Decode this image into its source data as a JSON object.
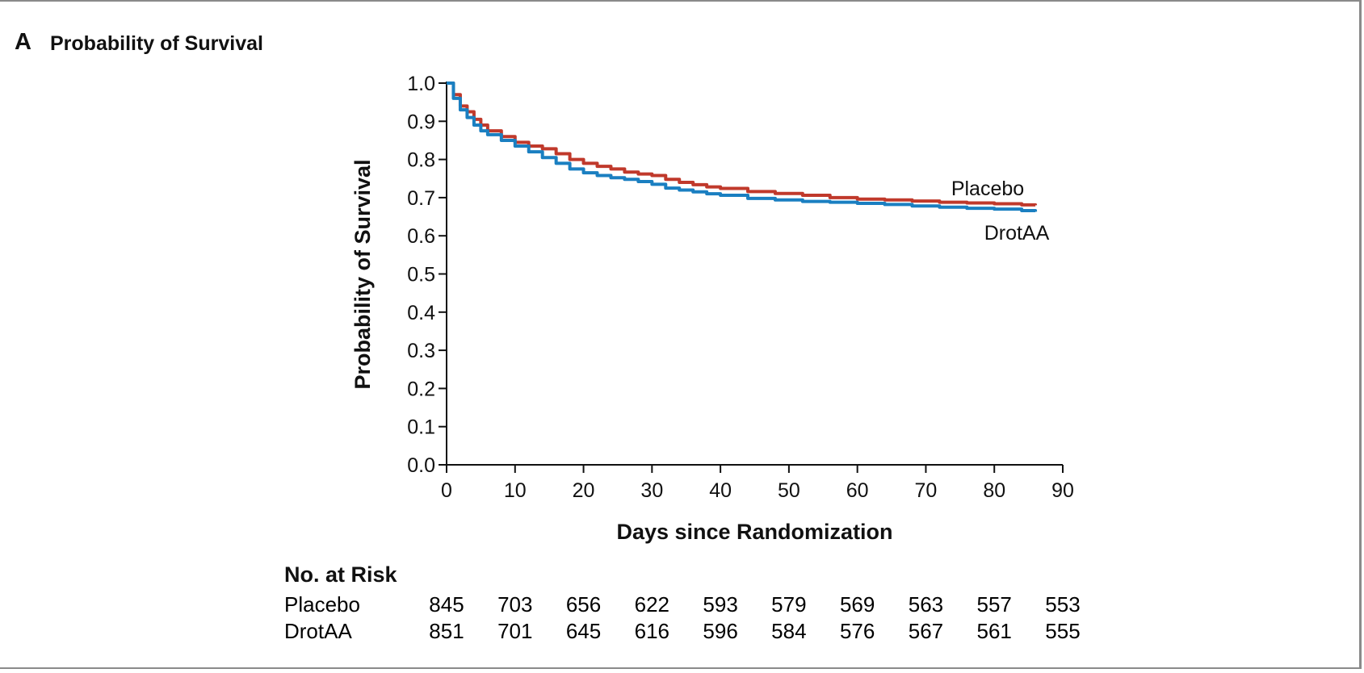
{
  "figure": {
    "panel_letter": "A",
    "panel_title": "Probability of Survival"
  },
  "chart_data": {
    "type": "line",
    "title": "Probability of Survival",
    "xlabel": "Days since Randomization",
    "ylabel": "Probability of Survival",
    "xlim": [
      0,
      90
    ],
    "ylim": [
      0.0,
      1.0
    ],
    "xticks": [
      0,
      10,
      20,
      30,
      40,
      50,
      60,
      70,
      80,
      90
    ],
    "yticks": [
      "0.0",
      "0.1",
      "0.2",
      "0.3",
      "0.4",
      "0.5",
      "0.6",
      "0.7",
      "0.8",
      "0.9",
      "1.0"
    ],
    "grid": false,
    "series": [
      {
        "name": "Placebo",
        "color": "#c0392b",
        "x": [
          0,
          1,
          2,
          3,
          4,
          5,
          6,
          8,
          10,
          12,
          14,
          16,
          18,
          20,
          22,
          24,
          26,
          28,
          30,
          32,
          34,
          36,
          38,
          40,
          44,
          48,
          52,
          56,
          60,
          64,
          68,
          72,
          76,
          80,
          84,
          86
        ],
        "y": [
          1.0,
          0.97,
          0.94,
          0.925,
          0.905,
          0.89,
          0.875,
          0.86,
          0.845,
          0.835,
          0.828,
          0.815,
          0.8,
          0.79,
          0.782,
          0.775,
          0.767,
          0.762,
          0.758,
          0.748,
          0.74,
          0.734,
          0.728,
          0.724,
          0.716,
          0.711,
          0.706,
          0.7,
          0.696,
          0.694,
          0.691,
          0.688,
          0.686,
          0.684,
          0.681,
          0.68
        ]
      },
      {
        "name": "DrotAA",
        "color": "#1a7fc1",
        "x": [
          0,
          1,
          2,
          3,
          4,
          5,
          6,
          8,
          10,
          12,
          14,
          16,
          18,
          20,
          22,
          24,
          26,
          28,
          30,
          32,
          34,
          36,
          38,
          40,
          44,
          48,
          52,
          56,
          60,
          64,
          68,
          72,
          76,
          80,
          84,
          86
        ],
        "y": [
          1.0,
          0.96,
          0.93,
          0.91,
          0.89,
          0.875,
          0.865,
          0.85,
          0.835,
          0.82,
          0.805,
          0.79,
          0.775,
          0.765,
          0.758,
          0.752,
          0.748,
          0.742,
          0.735,
          0.725,
          0.72,
          0.715,
          0.71,
          0.706,
          0.698,
          0.694,
          0.69,
          0.688,
          0.685,
          0.682,
          0.678,
          0.675,
          0.672,
          0.67,
          0.666,
          0.663
        ]
      }
    ],
    "annotations": [
      {
        "text": "Placebo",
        "series": "Placebo"
      },
      {
        "text": "DrotAA",
        "series": "DrotAA"
      }
    ],
    "at_risk": {
      "heading": "No. at Risk",
      "rows": [
        {
          "label": "Placebo",
          "values": [
            "845",
            "703",
            "656",
            "622",
            "593",
            "579",
            "569",
            "563",
            "557",
            "553"
          ]
        },
        {
          "label": "DrotAA",
          "values": [
            "851",
            "701",
            "645",
            "616",
            "596",
            "584",
            "576",
            "567",
            "561",
            "555"
          ]
        }
      ]
    }
  }
}
